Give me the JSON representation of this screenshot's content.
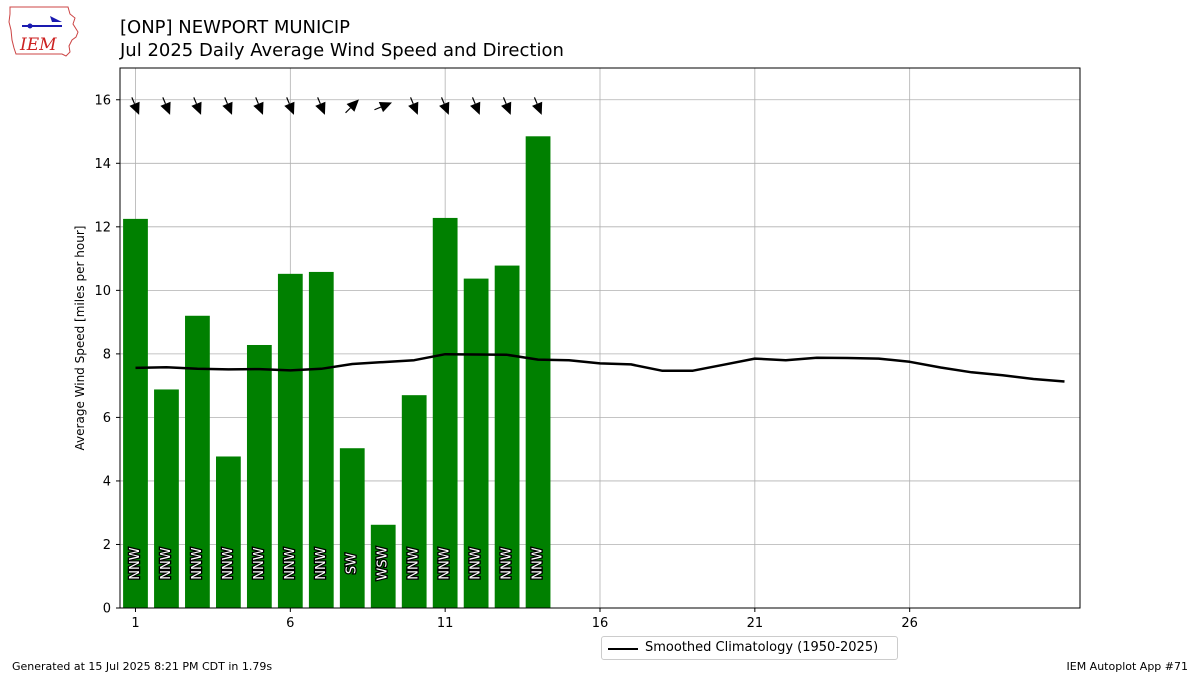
{
  "header": {
    "title_line1": "[ONP] NEWPORT MUNICIP",
    "title_line2": "Jul 2025 Daily Average Wind Speed and Direction"
  },
  "logo": {
    "text": "IEM",
    "icon": "iem-iowa-map-logo",
    "color": "#cc2222"
  },
  "footer": {
    "generated": "Generated at 15 Jul 2025 8:21 PM CDT in 1.79s",
    "app": "IEM Autoplot App #71"
  },
  "chart_data": {
    "type": "bar",
    "ylabel": "Average Wind Speed [miles per hour]",
    "xlim": [
      0.5,
      31.5
    ],
    "ylim": [
      0,
      17
    ],
    "xticks": [
      1,
      6,
      11,
      16,
      21,
      26
    ],
    "yticks": [
      0,
      2,
      4,
      6,
      8,
      10,
      12,
      14,
      16
    ],
    "grid": true,
    "bar_color": "#008000",
    "days": [
      1,
      2,
      3,
      4,
      5,
      6,
      7,
      8,
      9,
      10,
      11,
      12,
      13,
      14
    ],
    "values": [
      12.25,
      6.88,
      9.2,
      4.77,
      8.28,
      10.52,
      10.58,
      5.03,
      2.62,
      6.7,
      12.28,
      10.37,
      10.78,
      14.85
    ],
    "directions": [
      "NNW",
      "NNW",
      "NNW",
      "NNW",
      "NNW",
      "NNW",
      "NNW",
      "SW",
      "WSW",
      "NNW",
      "NNW",
      "NNW",
      "NNW",
      "NNW"
    ],
    "arrow_y": 15.8,
    "climatology": {
      "name": "Smoothed Climatology (1950-2025)",
      "color": "#000000",
      "days": [
        1,
        2,
        3,
        4,
        5,
        6,
        7,
        8,
        9,
        10,
        11,
        12,
        13,
        14,
        15,
        16,
        17,
        18,
        19,
        20,
        21,
        22,
        23,
        24,
        25,
        26,
        27,
        28,
        29,
        30,
        31
      ],
      "values": [
        7.56,
        7.58,
        7.53,
        7.51,
        7.52,
        7.48,
        7.53,
        7.68,
        7.74,
        7.8,
        7.99,
        7.98,
        7.97,
        7.82,
        7.8,
        7.7,
        7.67,
        7.47,
        7.47,
        7.66,
        7.85,
        7.8,
        7.88,
        7.87,
        7.85,
        7.75,
        7.57,
        7.42,
        7.33,
        7.21,
        7.13
      ]
    }
  }
}
